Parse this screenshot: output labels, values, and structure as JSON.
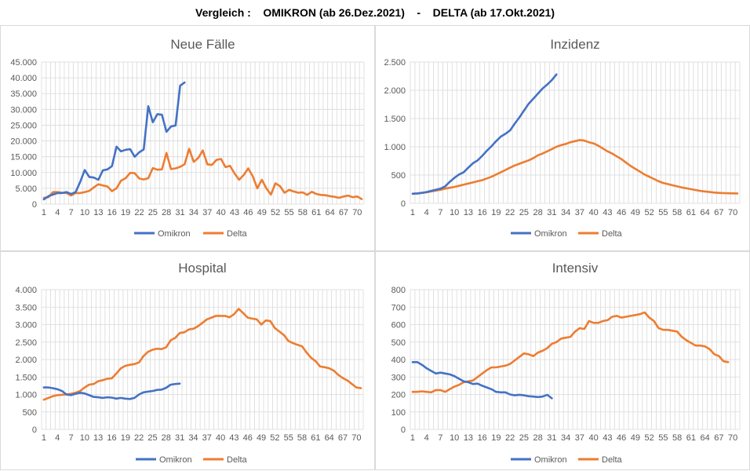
{
  "header": {
    "title": "Vergleich :    OMIKRON (ab 26.Dez.2021)    -    DELTA (ab 17.Okt.2021)"
  },
  "colors": {
    "omikron": "#4472C4",
    "delta": "#ED7D31",
    "grid": "#d9d9d9",
    "axis_text": "#595959"
  },
  "chart_data": [
    {
      "type": "line",
      "title": "Neue Fälle",
      "ylim": [
        0,
        45000
      ],
      "yticks": [
        0,
        5000,
        10000,
        15000,
        20000,
        25000,
        30000,
        35000,
        40000,
        45000
      ],
      "ytick_labels": [
        "0",
        "5.000",
        "10.000",
        "15.000",
        "20.000",
        "25.000",
        "30.000",
        "35.000",
        "40.000",
        "45.000"
      ],
      "x_ticks": [
        "1",
        "4",
        "7",
        "10",
        "13",
        "16",
        "19",
        "22",
        "25",
        "28",
        "31",
        "34",
        "37",
        "40",
        "43",
        "46",
        "49",
        "52",
        "55",
        "58",
        "61",
        "64",
        "67",
        "70"
      ],
      "x_count": 71,
      "grid": true,
      "legend_position": "bottom",
      "series": [
        {
          "name": "Omikron",
          "values": [
            1500,
            2500,
            3000,
            3500,
            3500,
            3800,
            3200,
            3800,
            7000,
            10800,
            8600,
            8400,
            7700,
            10700,
            11000,
            12000,
            18200,
            16700,
            17200,
            17400,
            15000,
            16400,
            17300,
            31000,
            25900,
            28500,
            28300,
            22900,
            24600,
            24900,
            37500,
            38500
          ]
        },
        {
          "name": "Delta",
          "values": [
            2000,
            2200,
            3800,
            3800,
            3600,
            3500,
            2700,
            3500,
            3500,
            3800,
            4200,
            5300,
            6300,
            5900,
            5600,
            4100,
            5000,
            7400,
            8200,
            9900,
            9800,
            8100,
            7800,
            8200,
            11400,
            10900,
            11000,
            16200,
            11100,
            11300,
            11800,
            12600,
            17500,
            13400,
            14600,
            17000,
            12600,
            12400,
            14000,
            14300,
            11700,
            12100,
            9700,
            7700,
            9200,
            11300,
            8800,
            5000,
            7700,
            5000,
            3000,
            6600,
            5700,
            3600,
            4500,
            4000,
            3600,
            3700,
            2900,
            3900,
            3200,
            2900,
            2800,
            2500,
            2300,
            2000,
            2400,
            2700,
            2200,
            2400,
            1600
          ]
        }
      ]
    },
    {
      "type": "line",
      "title": "Inzidenz",
      "ylim": [
        0,
        2500
      ],
      "yticks": [
        0,
        500,
        1000,
        1500,
        2000,
        2500
      ],
      "ytick_labels": [
        "0",
        "500",
        "1.000",
        "1.500",
        "2.000",
        "2.500"
      ],
      "x_ticks": [
        "1",
        "4",
        "7",
        "10",
        "13",
        "16",
        "19",
        "22",
        "25",
        "28",
        "31",
        "34",
        "37",
        "40",
        "43",
        "46",
        "49",
        "52",
        "55",
        "58",
        "61",
        "64",
        "67",
        "70"
      ],
      "x_count": 71,
      "grid": true,
      "legend_position": "bottom",
      "series": [
        {
          "name": "Omikron",
          "values": [
            170,
            175,
            185,
            200,
            220,
            240,
            260,
            300,
            380,
            450,
            510,
            550,
            630,
            710,
            760,
            840,
            930,
            1010,
            1100,
            1180,
            1230,
            1290,
            1410,
            1520,
            1640,
            1760,
            1850,
            1940,
            2030,
            2100,
            2180,
            2280
          ]
        },
        {
          "name": "Delta",
          "values": [
            170,
            175,
            185,
            195,
            210,
            225,
            240,
            260,
            275,
            290,
            310,
            330,
            350,
            370,
            390,
            410,
            440,
            470,
            510,
            550,
            590,
            630,
            670,
            700,
            730,
            760,
            800,
            850,
            880,
            920,
            960,
            1000,
            1030,
            1050,
            1080,
            1100,
            1120,
            1110,
            1080,
            1060,
            1020,
            970,
            920,
            880,
            830,
            780,
            720,
            660,
            610,
            560,
            510,
            470,
            430,
            390,
            360,
            340,
            320,
            300,
            280,
            265,
            250,
            235,
            220,
            210,
            200,
            190,
            185,
            180,
            178,
            176,
            175
          ]
        }
      ]
    },
    {
      "type": "line",
      "title": "Hospital",
      "ylim": [
        0,
        4000
      ],
      "yticks": [
        0,
        500,
        1000,
        1500,
        2000,
        2500,
        3000,
        3500,
        4000
      ],
      "ytick_labels": [
        "0",
        "500",
        "1.000",
        "1.500",
        "2.000",
        "2.500",
        "3.000",
        "3.500",
        "4.000"
      ],
      "x_ticks": [
        "1",
        "4",
        "7",
        "10",
        "13",
        "16",
        "19",
        "22",
        "25",
        "28",
        "31",
        "34",
        "37",
        "40",
        "43",
        "46",
        "49",
        "52",
        "55",
        "58",
        "61",
        "64",
        "67",
        "70"
      ],
      "x_count": 71,
      "grid": true,
      "legend_position": "bottom",
      "series": [
        {
          "name": "Omikron",
          "values": [
            1200,
            1200,
            1180,
            1150,
            1100,
            1000,
            980,
            1020,
            1050,
            1030,
            980,
            930,
            920,
            900,
            920,
            910,
            880,
            900,
            880,
            870,
            900,
            1000,
            1060,
            1080,
            1100,
            1130,
            1140,
            1190,
            1280,
            1300,
            1310
          ]
        },
        {
          "name": "Delta",
          "values": [
            850,
            900,
            950,
            980,
            990,
            1000,
            1020,
            1050,
            1100,
            1200,
            1280,
            1300,
            1380,
            1410,
            1450,
            1460,
            1600,
            1750,
            1820,
            1850,
            1870,
            1920,
            2100,
            2220,
            2280,
            2310,
            2300,
            2350,
            2550,
            2620,
            2760,
            2780,
            2860,
            2880,
            2950,
            3050,
            3150,
            3200,
            3250,
            3250,
            3250,
            3210,
            3300,
            3450,
            3330,
            3200,
            3170,
            3150,
            3000,
            3120,
            3100,
            2900,
            2800,
            2700,
            2530,
            2470,
            2420,
            2380,
            2200,
            2050,
            1950,
            1800,
            1780,
            1750,
            1680,
            1560,
            1470,
            1400,
            1300,
            1200,
            1180
          ]
        }
      ]
    },
    {
      "type": "line",
      "title": "Intensiv",
      "ylim": [
        0,
        800
      ],
      "yticks": [
        0,
        100,
        200,
        300,
        400,
        500,
        600,
        700,
        800
      ],
      "ytick_labels": [
        "0",
        "100",
        "200",
        "300",
        "400",
        "500",
        "600",
        "700",
        "800"
      ],
      "x_ticks": [
        "1",
        "4",
        "7",
        "10",
        "13",
        "16",
        "19",
        "22",
        "25",
        "28",
        "31",
        "34",
        "37",
        "40",
        "43",
        "46",
        "49",
        "52",
        "55",
        "58",
        "61",
        "64",
        "67",
        "70"
      ],
      "x_count": 71,
      "grid": true,
      "legend_position": "bottom",
      "series": [
        {
          "name": "Omikron",
          "values": [
            385,
            385,
            370,
            350,
            335,
            320,
            325,
            320,
            315,
            305,
            290,
            275,
            270,
            260,
            262,
            250,
            240,
            230,
            215,
            212,
            212,
            200,
            195,
            198,
            195,
            190,
            188,
            185,
            188,
            198,
            178
          ]
        },
        {
          "name": "Delta",
          "values": [
            215,
            215,
            218,
            215,
            212,
            225,
            225,
            215,
            230,
            245,
            255,
            270,
            275,
            280,
            300,
            320,
            340,
            355,
            355,
            360,
            365,
            375,
            395,
            415,
            435,
            430,
            420,
            440,
            450,
            465,
            490,
            500,
            520,
            525,
            530,
            560,
            580,
            575,
            620,
            610,
            610,
            620,
            625,
            645,
            650,
            640,
            645,
            650,
            655,
            660,
            670,
            640,
            620,
            580,
            570,
            570,
            565,
            560,
            530,
            510,
            495,
            480,
            480,
            475,
            460,
            430,
            420,
            390,
            385
          ]
        }
      ]
    }
  ]
}
